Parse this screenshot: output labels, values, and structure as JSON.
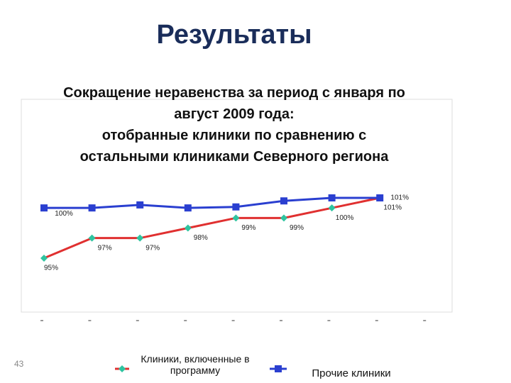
{
  "title": "Результаты",
  "slide_number": "43",
  "chart_data": {
    "type": "line",
    "title": "Сокращение неравенства за период с января по\nавгуст 2009 года:\nотобранные клиники по сравнению с\nостальными клиниками Северного региона",
    "categories": [
      null,
      null,
      null,
      null,
      null,
      null,
      null,
      null
    ],
    "series": [
      {
        "name": "Клиники, включенные в программу",
        "color": "#e03030",
        "marker_color": "#2ec4a0",
        "values": [
          95,
          97,
          97,
          98,
          99,
          99,
          100,
          101
        ],
        "value_labels": [
          "95%",
          "97%",
          "97%",
          "98%",
          "99%",
          "99%",
          "100%",
          "101%"
        ]
      },
      {
        "name": "Прочие клиники",
        "color": "#2a3fd0",
        "marker_color": "#2a3fd0",
        "values": [
          100,
          100,
          100.3,
          100,
          100.1,
          100.7,
          101,
          101
        ],
        "value_labels": [
          "100%",
          null,
          null,
          null,
          null,
          null,
          null,
          "101%"
        ]
      }
    ],
    "legend": "bottom"
  }
}
